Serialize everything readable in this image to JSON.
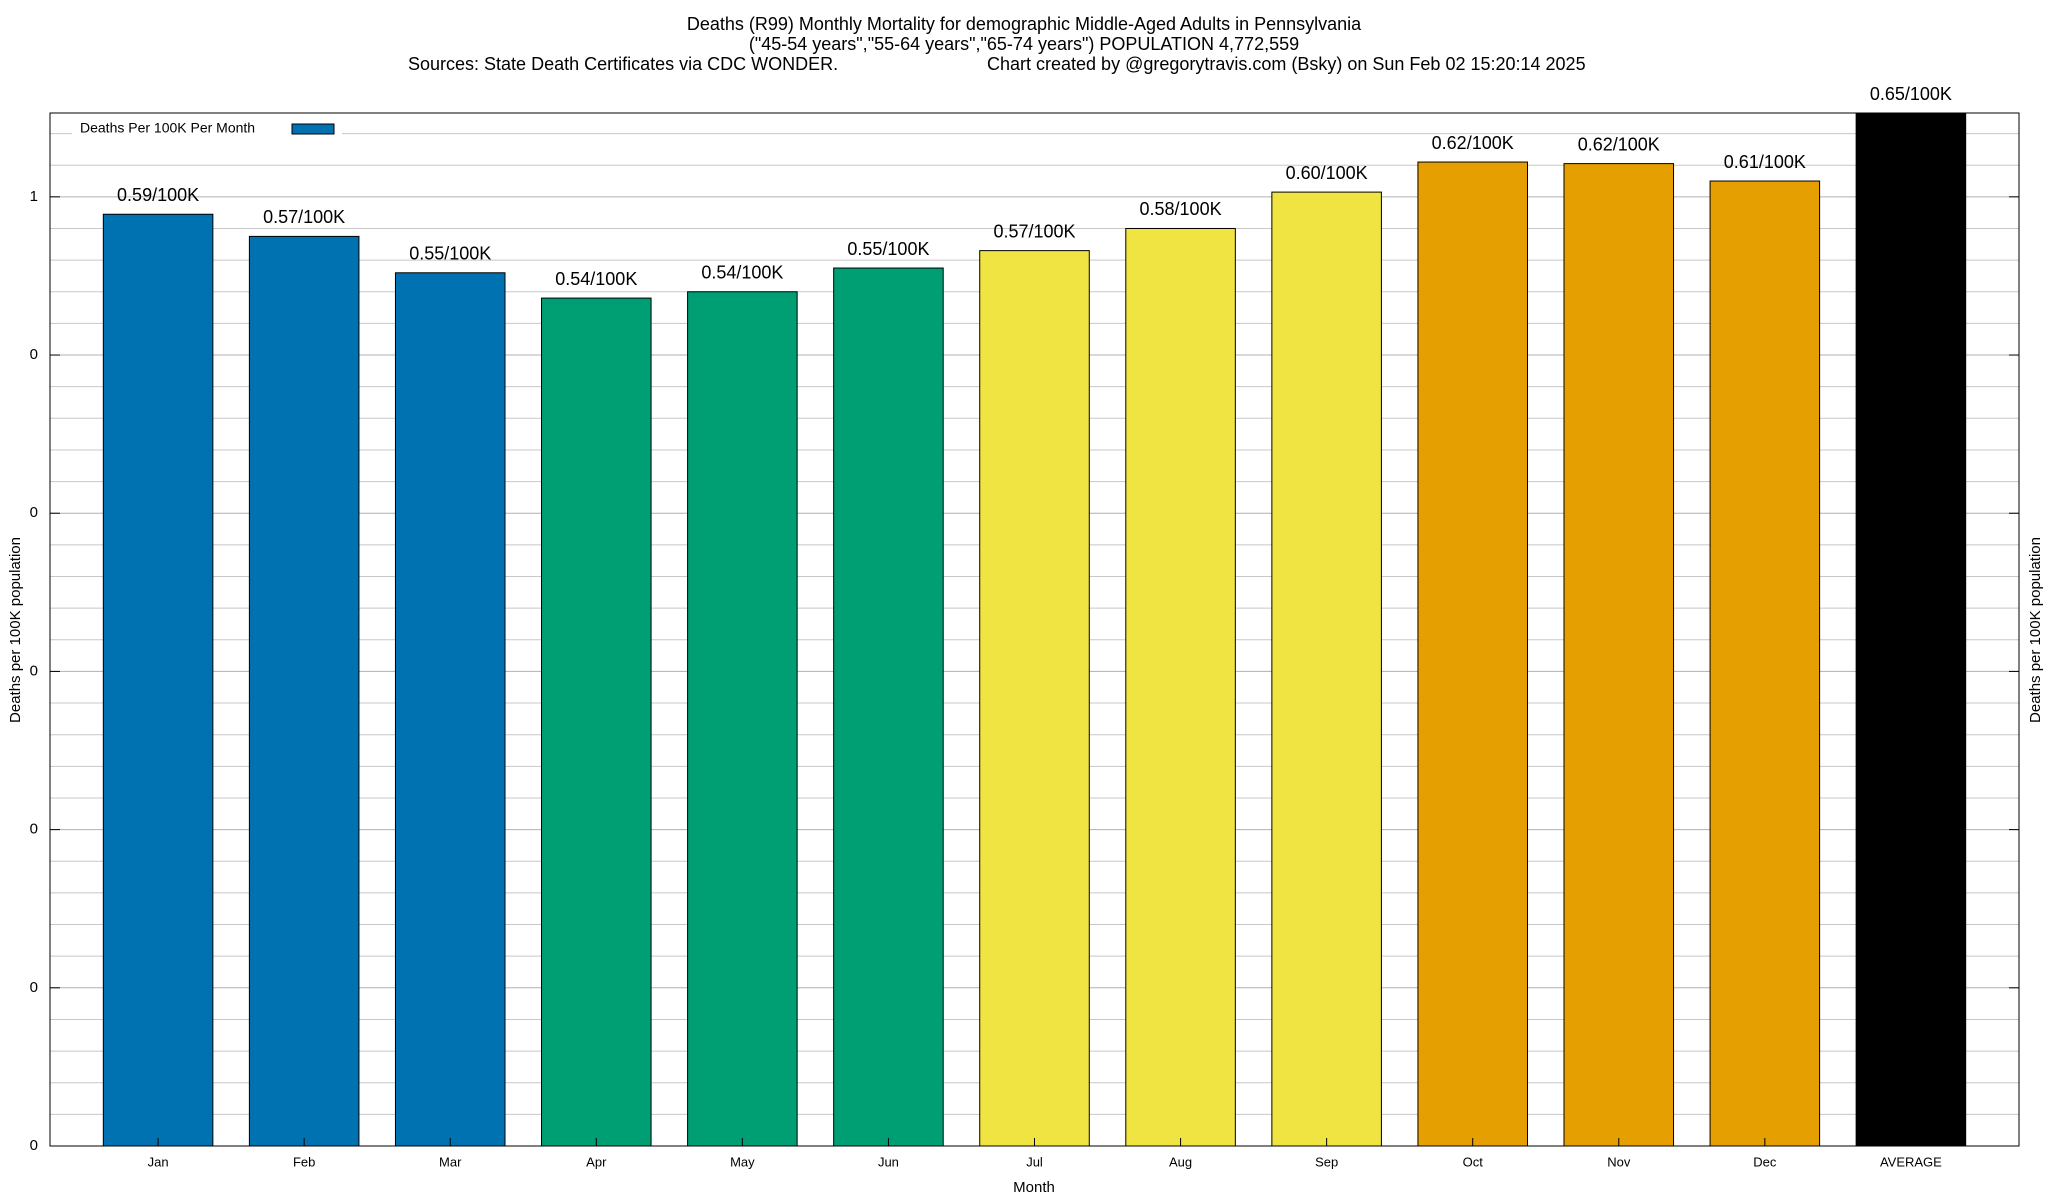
{
  "chart_data": {
    "type": "bar",
    "title": "Deaths (R99) Monthly Mortality for demographic Middle-Aged Adults in Pennsylvania",
    "subtitle": "(\"45-54 years\",\"55-64 years\",\"65-74 years\") POPULATION 4,772,559",
    "source": "Sources: State Death Certificates via CDC WONDER.",
    "credit": "Chart created by @gregorytravis.com (Bsky) on Sun Feb 02 15:20:14 2025",
    "x_label": "Month",
    "y_label": "Deaths per 100K population",
    "y2_label": "Deaths per 100K population",
    "categories": [
      "Jan",
      "Feb",
      "Mar",
      "Apr",
      "May",
      "Jun",
      "Jul",
      "Aug",
      "Sep",
      "Oct",
      "Nov",
      "Dec",
      "AVERAGE"
    ],
    "values": [
      0.589,
      0.575,
      0.552,
      0.536,
      0.54,
      0.555,
      0.566,
      0.58,
      0.603,
      0.622,
      0.621,
      0.61,
      0.653
    ],
    "value_labels": [
      "0.59/100K",
      "0.57/100K",
      "0.55/100K",
      "0.54/100K",
      "0.54/100K",
      "0.55/100K",
      "0.57/100K",
      "0.58/100K",
      "0.60/100K",
      "0.62/100K",
      "0.62/100K",
      "0.61/100K",
      "0.65/100K"
    ],
    "colors": [
      "#0072b2",
      "#0072b2",
      "#0072b2",
      "#009e73",
      "#009e73",
      "#009e73",
      "#f0e442",
      "#f0e442",
      "#f0e442",
      "#e69f00",
      "#e69f00",
      "#e69f00",
      "#000000"
    ],
    "legend": {
      "label": "Deaths Per 100K Per Month",
      "color": "#0072b2",
      "position": "top-left"
    },
    "ylim": [
      0,
      0.653
    ],
    "yticks": [
      0,
      {
        "value": 0.1,
        "label": "0"
      },
      {
        "value": 0.2,
        "label": "0"
      },
      {
        "value": 0.3,
        "label": "0"
      },
      {
        "value": 0.4,
        "label": "0"
      },
      {
        "value": 0.5,
        "label": "0"
      },
      {
        "value": 0.6,
        "label": "1"
      }
    ],
    "grid": true
  }
}
